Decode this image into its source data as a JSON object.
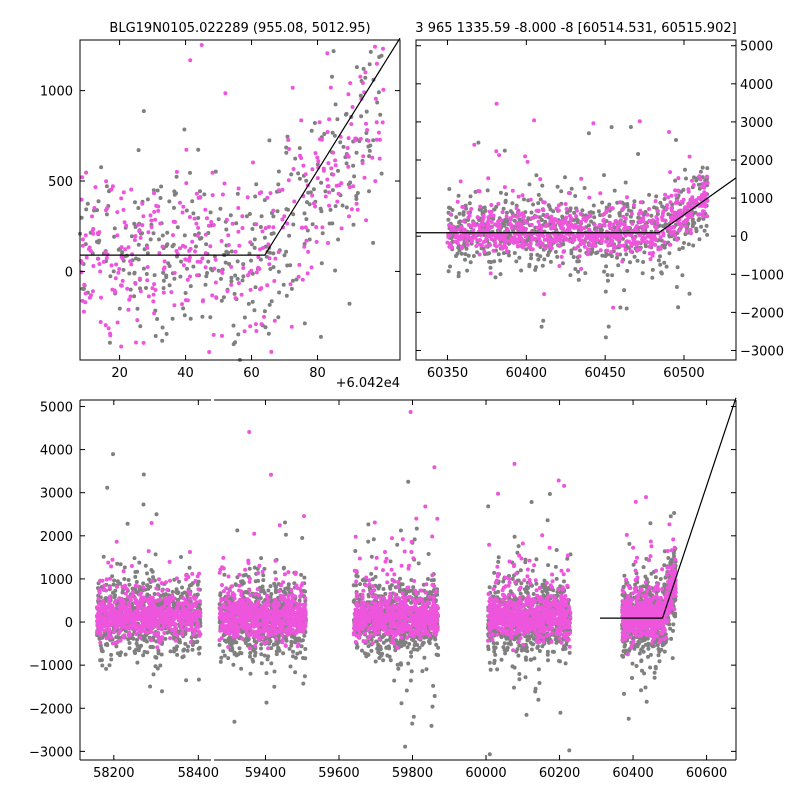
{
  "chart_data": [
    {
      "type": "scatter",
      "title": "BLG19N0105.022289 (955.08, 5012.95)",
      "xlabel": "",
      "ylabel": "",
      "x_offset_label": "+6.042e4",
      "xlim": [
        8,
        105
      ],
      "ylim": [
        -490,
        1280
      ],
      "xticks": [
        20,
        40,
        60,
        80
      ],
      "yticks": [
        0,
        500,
        1000
      ],
      "grid": false,
      "colors": {
        "series_a": "#808080",
        "series_b": "#ee55dd",
        "model": "#000000"
      },
      "model_line": {
        "x": [
          8,
          64,
          105
        ],
        "y": [
          90,
          90,
          1290
        ]
      },
      "scatter_model": {
        "break_x": 64,
        "base_y": 90,
        "slope": 22,
        "x_range": [
          8,
          100
        ],
        "n_per_series": 380
      },
      "series": [
        {
          "name": "",
          "color": "#808080"
        },
        {
          "name": "",
          "color": "#ee55dd"
        }
      ]
    },
    {
      "type": "scatter",
      "title": "3 965 1335.59 -8.000 -8 [60514.531, 60515.902]",
      "xlabel": "",
      "ylabel": "",
      "xlim": [
        60330,
        60533
      ],
      "ylim": [
        -3250,
        5150
      ],
      "xticks": [
        60350,
        60400,
        60450,
        60500
      ],
      "yticks": [
        -3000,
        -2000,
        -1000,
        0,
        1000,
        2000,
        3000,
        4000,
        5000
      ],
      "y_axis_side": "right",
      "grid": false,
      "model_line": {
        "x": [
          60330,
          60484,
          60533
        ],
        "y": [
          90,
          90,
          1530
        ]
      },
      "scatter_model": {
        "break_x": 60484,
        "base_y": 90,
        "slope": 30,
        "x_range": [
          60350,
          60515
        ],
        "n_per_series": 800
      },
      "series": [
        {
          "name": "",
          "color": "#808080"
        },
        {
          "name": "",
          "color": "#ee55dd"
        }
      ]
    },
    {
      "type": "scatter",
      "title": "",
      "xlabel": "",
      "ylabel": "",
      "x_segments": [
        {
          "xlim": [
            58120,
            58430
          ],
          "xticks": [
            58200,
            58400
          ]
        },
        {
          "xlim": [
            59260,
            60680
          ],
          "xticks": [
            59400,
            59600,
            59800,
            60000,
            60200,
            60400,
            60600
          ]
        }
      ],
      "ylim": [
        -3200,
        5150
      ],
      "yticks": [
        -3000,
        -2000,
        -1000,
        0,
        1000,
        2000,
        3000,
        4000,
        5000
      ],
      "grid": false,
      "model_line": {
        "x": [
          60310,
          60480,
          60680
        ],
        "y": [
          90,
          90,
          5200
        ]
      },
      "seasons": [
        [
          58160,
          58405
        ],
        [
          59275,
          59510
        ],
        [
          59640,
          59870
        ],
        [
          60005,
          60230
        ],
        [
          60370,
          60516
        ]
      ],
      "scatter_model": {
        "break_x": 60484,
        "base_y": 90,
        "slope": 30,
        "n_per_season": 700
      },
      "series": [
        {
          "name": "",
          "color": "#808080"
        },
        {
          "name": "",
          "color": "#ee55dd"
        }
      ]
    }
  ]
}
